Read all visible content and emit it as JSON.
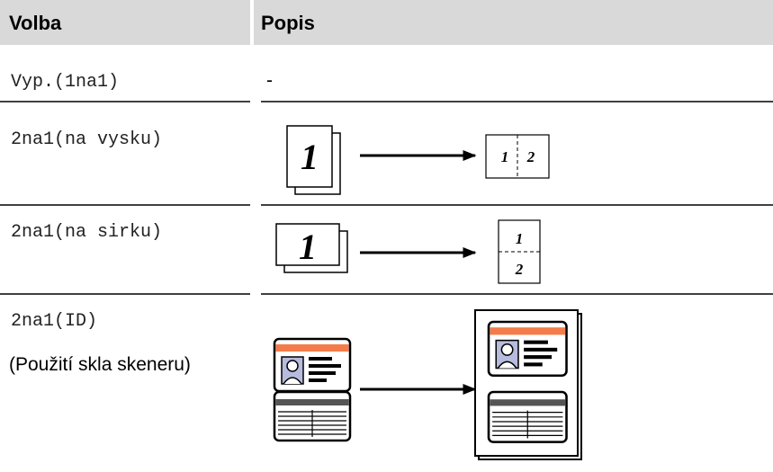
{
  "table": {
    "columns": [
      "Volba",
      "Popis"
    ],
    "rows": [
      {
        "option": "Vyp.(1na1)",
        "description": "-"
      },
      {
        "option": "2na1(na vysku)",
        "source_page": "1",
        "result_pages": [
          "1",
          "2"
        ]
      },
      {
        "option": "2na1(na sirku)",
        "source_page": "1",
        "result_pages": [
          "1",
          "2"
        ]
      },
      {
        "option": "2na1(ID)",
        "note": "(Použití skla skeneru)"
      }
    ]
  }
}
